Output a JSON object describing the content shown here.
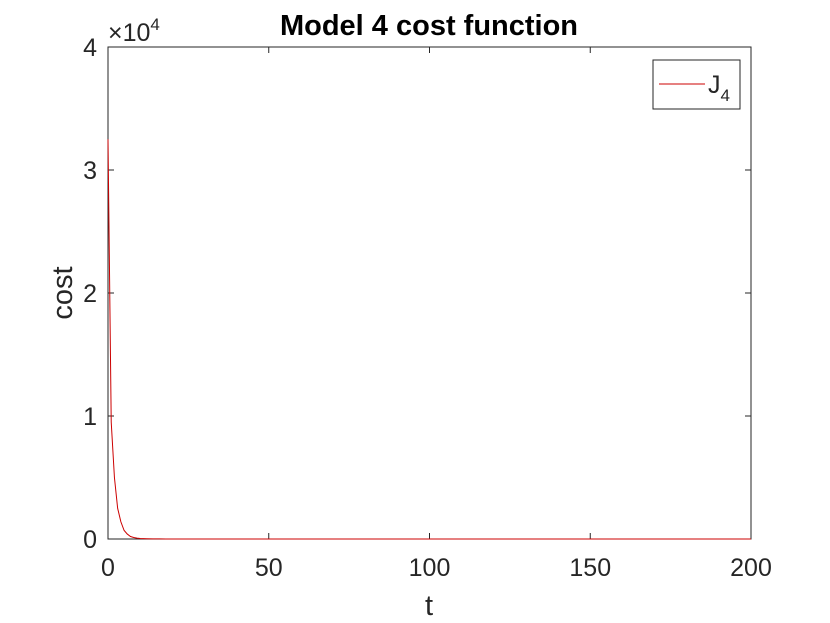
{
  "chart_data": {
    "type": "line",
    "title": "Model 4 cost function",
    "xlabel": "t",
    "ylabel": "cost",
    "xlim": [
      0,
      200
    ],
    "ylim": [
      0,
      40000
    ],
    "x_ticks": [
      0,
      50,
      100,
      150,
      200
    ],
    "x_tick_labels": [
      "0",
      "50",
      "100",
      "150",
      "200"
    ],
    "y_ticks": [
      0,
      10000,
      20000,
      30000,
      40000
    ],
    "y_tick_labels": [
      "0",
      "1",
      "2",
      "3",
      "4"
    ],
    "y_exponent": {
      "base": "×10",
      "power": "4"
    },
    "grid": false,
    "box": true,
    "legend": {
      "position": "top-right",
      "entries": [
        {
          "label": "J",
          "subscript": "4",
          "color": "#cc0000"
        }
      ]
    },
    "series": [
      {
        "name": "J_4",
        "color": "#cc0000",
        "x": [
          0,
          1,
          2,
          3,
          4,
          5,
          6,
          7,
          8,
          9,
          10,
          12,
          14,
          16,
          18,
          20,
          25,
          30,
          40,
          50,
          75,
          100,
          125,
          150,
          175,
          200
        ],
        "values": [
          32500,
          9500,
          5000,
          2500,
          1400,
          700,
          400,
          200,
          120,
          70,
          40,
          20,
          10,
          6,
          4,
          3,
          2,
          1,
          1,
          1,
          1,
          1,
          1,
          1,
          1,
          1
        ]
      }
    ]
  }
}
